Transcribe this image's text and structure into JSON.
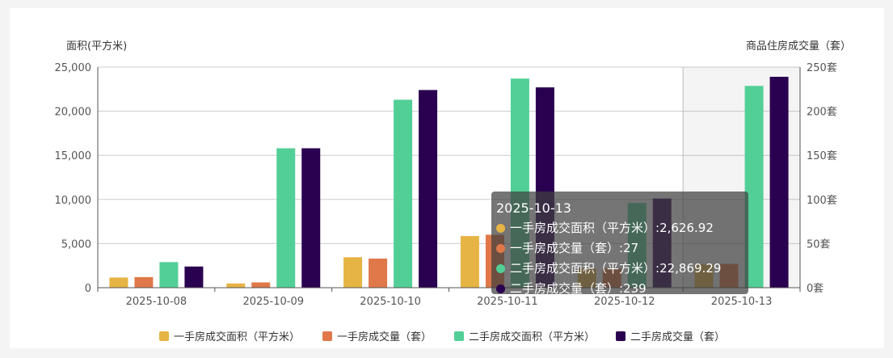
{
  "chart_data": {
    "type": "bar",
    "ylabel_left": "面积(平方米)",
    "ylabel_right": "商品住房成交量（套）",
    "categories": [
      "2025-10-08",
      "2025-10-09",
      "2025-10-10",
      "2025-10-11",
      "2025-10-12",
      "2025-10-13"
    ],
    "y_left": {
      "range": [
        0,
        25000
      ],
      "ticks": [
        0,
        5000,
        10000,
        15000,
        20000,
        25000
      ],
      "tick_labels": [
        "0",
        "5,000",
        "10,000",
        "15,000",
        "20,000",
        "25,000"
      ]
    },
    "y_right": {
      "range": [
        0,
        250
      ],
      "ticks": [
        0,
        50,
        100,
        150,
        200,
        250
      ],
      "tick_labels": [
        "0套",
        "50套",
        "100套",
        "150套",
        "200套",
        "250套"
      ]
    },
    "grid": true,
    "legend_position": "bottom",
    "series": [
      {
        "name": "一手房成交面积（平方米）",
        "axis": "left",
        "color": "#e6b444",
        "values": [
          1150,
          480,
          3450,
          5850,
          2150,
          2626.92
        ]
      },
      {
        "name": "一手房成交量（套）",
        "axis": "right",
        "color": "#e0784a",
        "values": [
          12,
          6,
          33,
          60,
          22,
          27
        ]
      },
      {
        "name": "二手房成交面积（平方米）",
        "axis": "left",
        "color": "#52cf96",
        "values": [
          2900,
          15800,
          21300,
          23700,
          9600,
          22869.29
        ]
      },
      {
        "name": "二手房成交量（套）",
        "axis": "right",
        "color": "#2a0050",
        "values": [
          24,
          158,
          224,
          227,
          101,
          239
        ]
      }
    ],
    "tooltip": {
      "title": "2025-10-13",
      "items": [
        {
          "label": "一手房成交面积（平方米）",
          "value": "2,626.92",
          "color": "#e6b444"
        },
        {
          "label": "一手房成交量（套）",
          "value": "27",
          "color": "#e0784a"
        },
        {
          "label": "二手房成交面积（平方米）",
          "value": "22,869.29",
          "color": "#52cf96"
        },
        {
          "label": "二手房成交量（套）",
          "value": "239",
          "color": "#2a0050"
        }
      ]
    }
  }
}
